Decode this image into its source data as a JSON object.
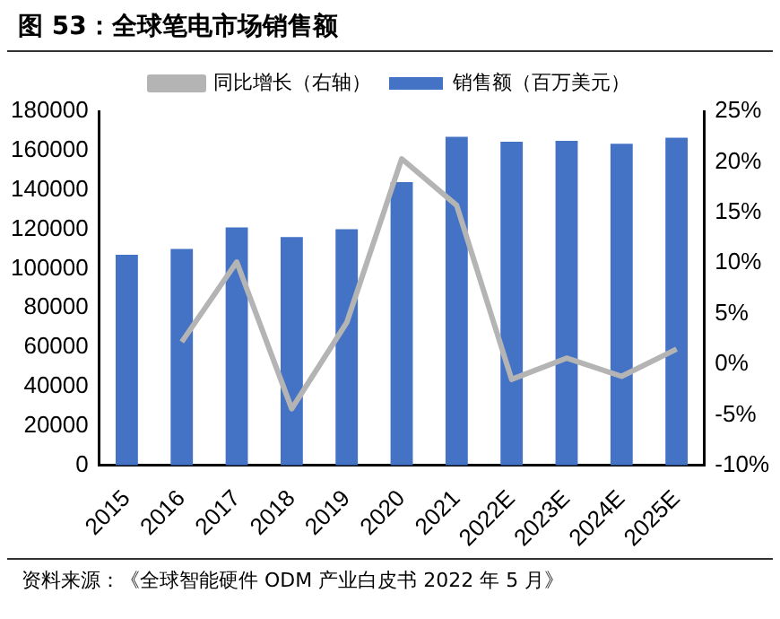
{
  "chart_data": {
    "type": "bar",
    "title": "图 53：全球笔电市场销售额",
    "categories": [
      "2015",
      "2016",
      "2017",
      "2018",
      "2019",
      "2020",
      "2021",
      "2022E",
      "2023E",
      "2024E",
      "2025E"
    ],
    "series": [
      {
        "name": "销售额（百万美元）",
        "color": "#4472c4",
        "values": [
          107000,
          110000,
          121000,
          116000,
          120000,
          144000,
          167000,
          164500,
          165000,
          163500,
          166500
        ]
      },
      {
        "name": "同比增长（右轴）",
        "type": "line",
        "axis": "y2",
        "color": "#b4b4b4",
        "values": [
          null,
          2.2,
          10.1,
          -4.4,
          4.1,
          20.3,
          15.7,
          -1.5,
          0.6,
          -1.2,
          1.5
        ]
      }
    ],
    "ylim": [
      0,
      180000
    ],
    "yticks": [
      0,
      20000,
      40000,
      60000,
      80000,
      100000,
      120000,
      140000,
      160000,
      180000
    ],
    "y2lim": [
      -10,
      25
    ],
    "y2ticks": [
      {
        "value": -10,
        "label": "-10%"
      },
      {
        "value": -5,
        "label": "-5%"
      },
      {
        "value": 0,
        "label": "0%"
      },
      {
        "value": 5,
        "label": "5%"
      },
      {
        "value": 10,
        "label": "10%"
      },
      {
        "value": 15,
        "label": "15%"
      },
      {
        "value": 20,
        "label": "20%"
      },
      {
        "value": 25,
        "label": "25%"
      }
    ],
    "grid": false,
    "legend": "top",
    "marker": "none",
    "annotations": [
      "资料来源：《全球智能硬件 ODM 产业白皮书 2022 年 5 月》"
    ]
  }
}
